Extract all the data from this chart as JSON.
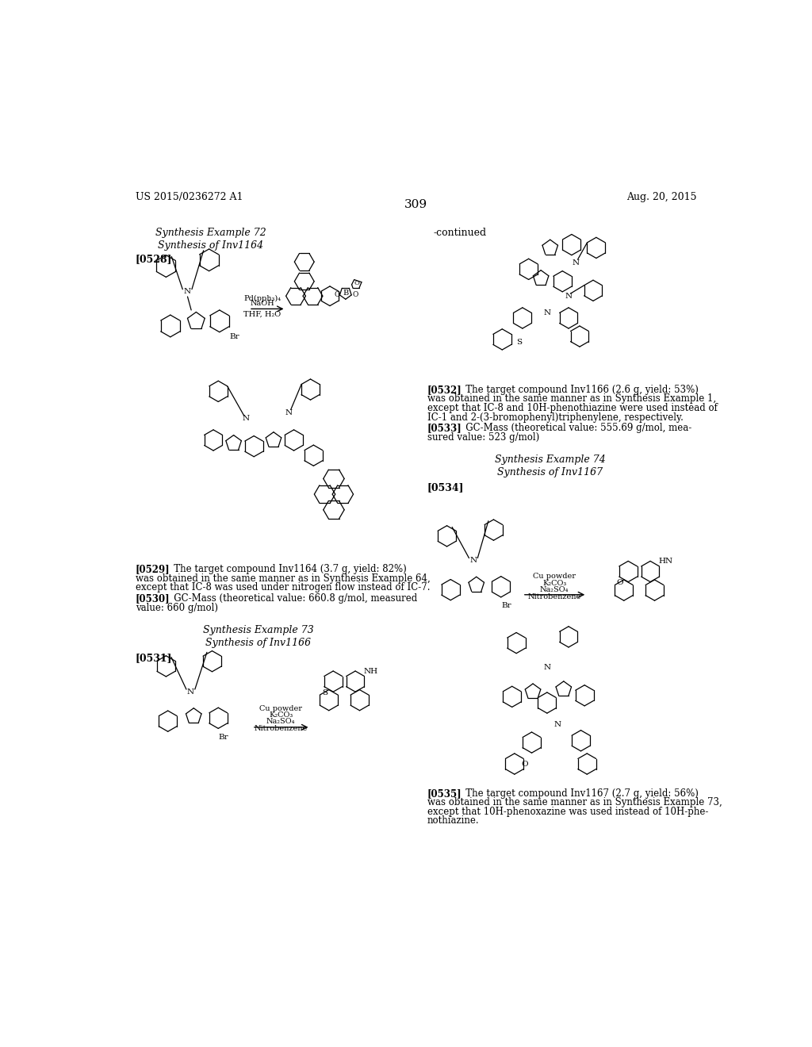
{
  "bg": "#ffffff",
  "header_left": "US 2015/0236272 A1",
  "header_right": "Aug. 20, 2015",
  "page_number": "309",
  "texts": {
    "syn_ex72": "Synthesis Example 72",
    "syn_inv1164": "Synthesis of Inv1164",
    "tag528": "[0528]",
    "reagents1a": "Pd(pph₃)₄",
    "reagents1b": "NaOH",
    "reagents1c": "THF, H₂O",
    "p529_tag": "[0529]",
    "p529": "   The target compound Inv1164 (3.7 g, yield: 82%)\nwas obtained in the same manner as in Synthesis Example 64,\nexcept that IC-8 was used under nitrogen flow instead of IC-7.",
    "p530_tag": "[0530]",
    "p530": "   GC-Mass (theoretical value: 660.8 g/mol, measured\nvalue: 660 g/mol)",
    "syn_ex73": "Synthesis Example 73",
    "syn_inv1166": "Synthesis of Inv1166",
    "tag531": "[0531]",
    "reagents2a": "Cu powder",
    "reagents2b": "K₂CO₃",
    "reagents2c": "Na₂SO₄",
    "reagents2d": "Nitrobenzene",
    "continued": "-continued",
    "p532_tag": "[0532]",
    "p532": "   The target compound Inv1166 (2.6 g, yield: 53%)\nwas obtained in the same manner as in Synthesis Example 1,\nexcept that IC-8 and 10H-phenothiazine were used instead of\nIC-1 and 2-(3-bromophenyl)triphenylene, respectively.",
    "p533_tag": "[0533]",
    "p533": "   GC-Mass (theoretical value: 555.69 g/mol, mea-\nsured value: 523 g/mol)",
    "syn_ex74": "Synthesis Example 74",
    "syn_inv1167": "Synthesis of Inv1167",
    "tag534": "[0534]",
    "reagents3a": "Cu powder",
    "reagents3b": "K₂CO₃",
    "reagents3c": "Na₂SO₄",
    "reagents3d": "Nitrobenzene",
    "p535_tag": "[0535]",
    "p535": "   The target compound Inv1167 (2.7 g, yield: 56%)\nwas obtained in the same manner as in Synthesis Example 73,\nexcept that 10H-phenoxazine was used instead of 10H-phe-\nnothiazine."
  }
}
